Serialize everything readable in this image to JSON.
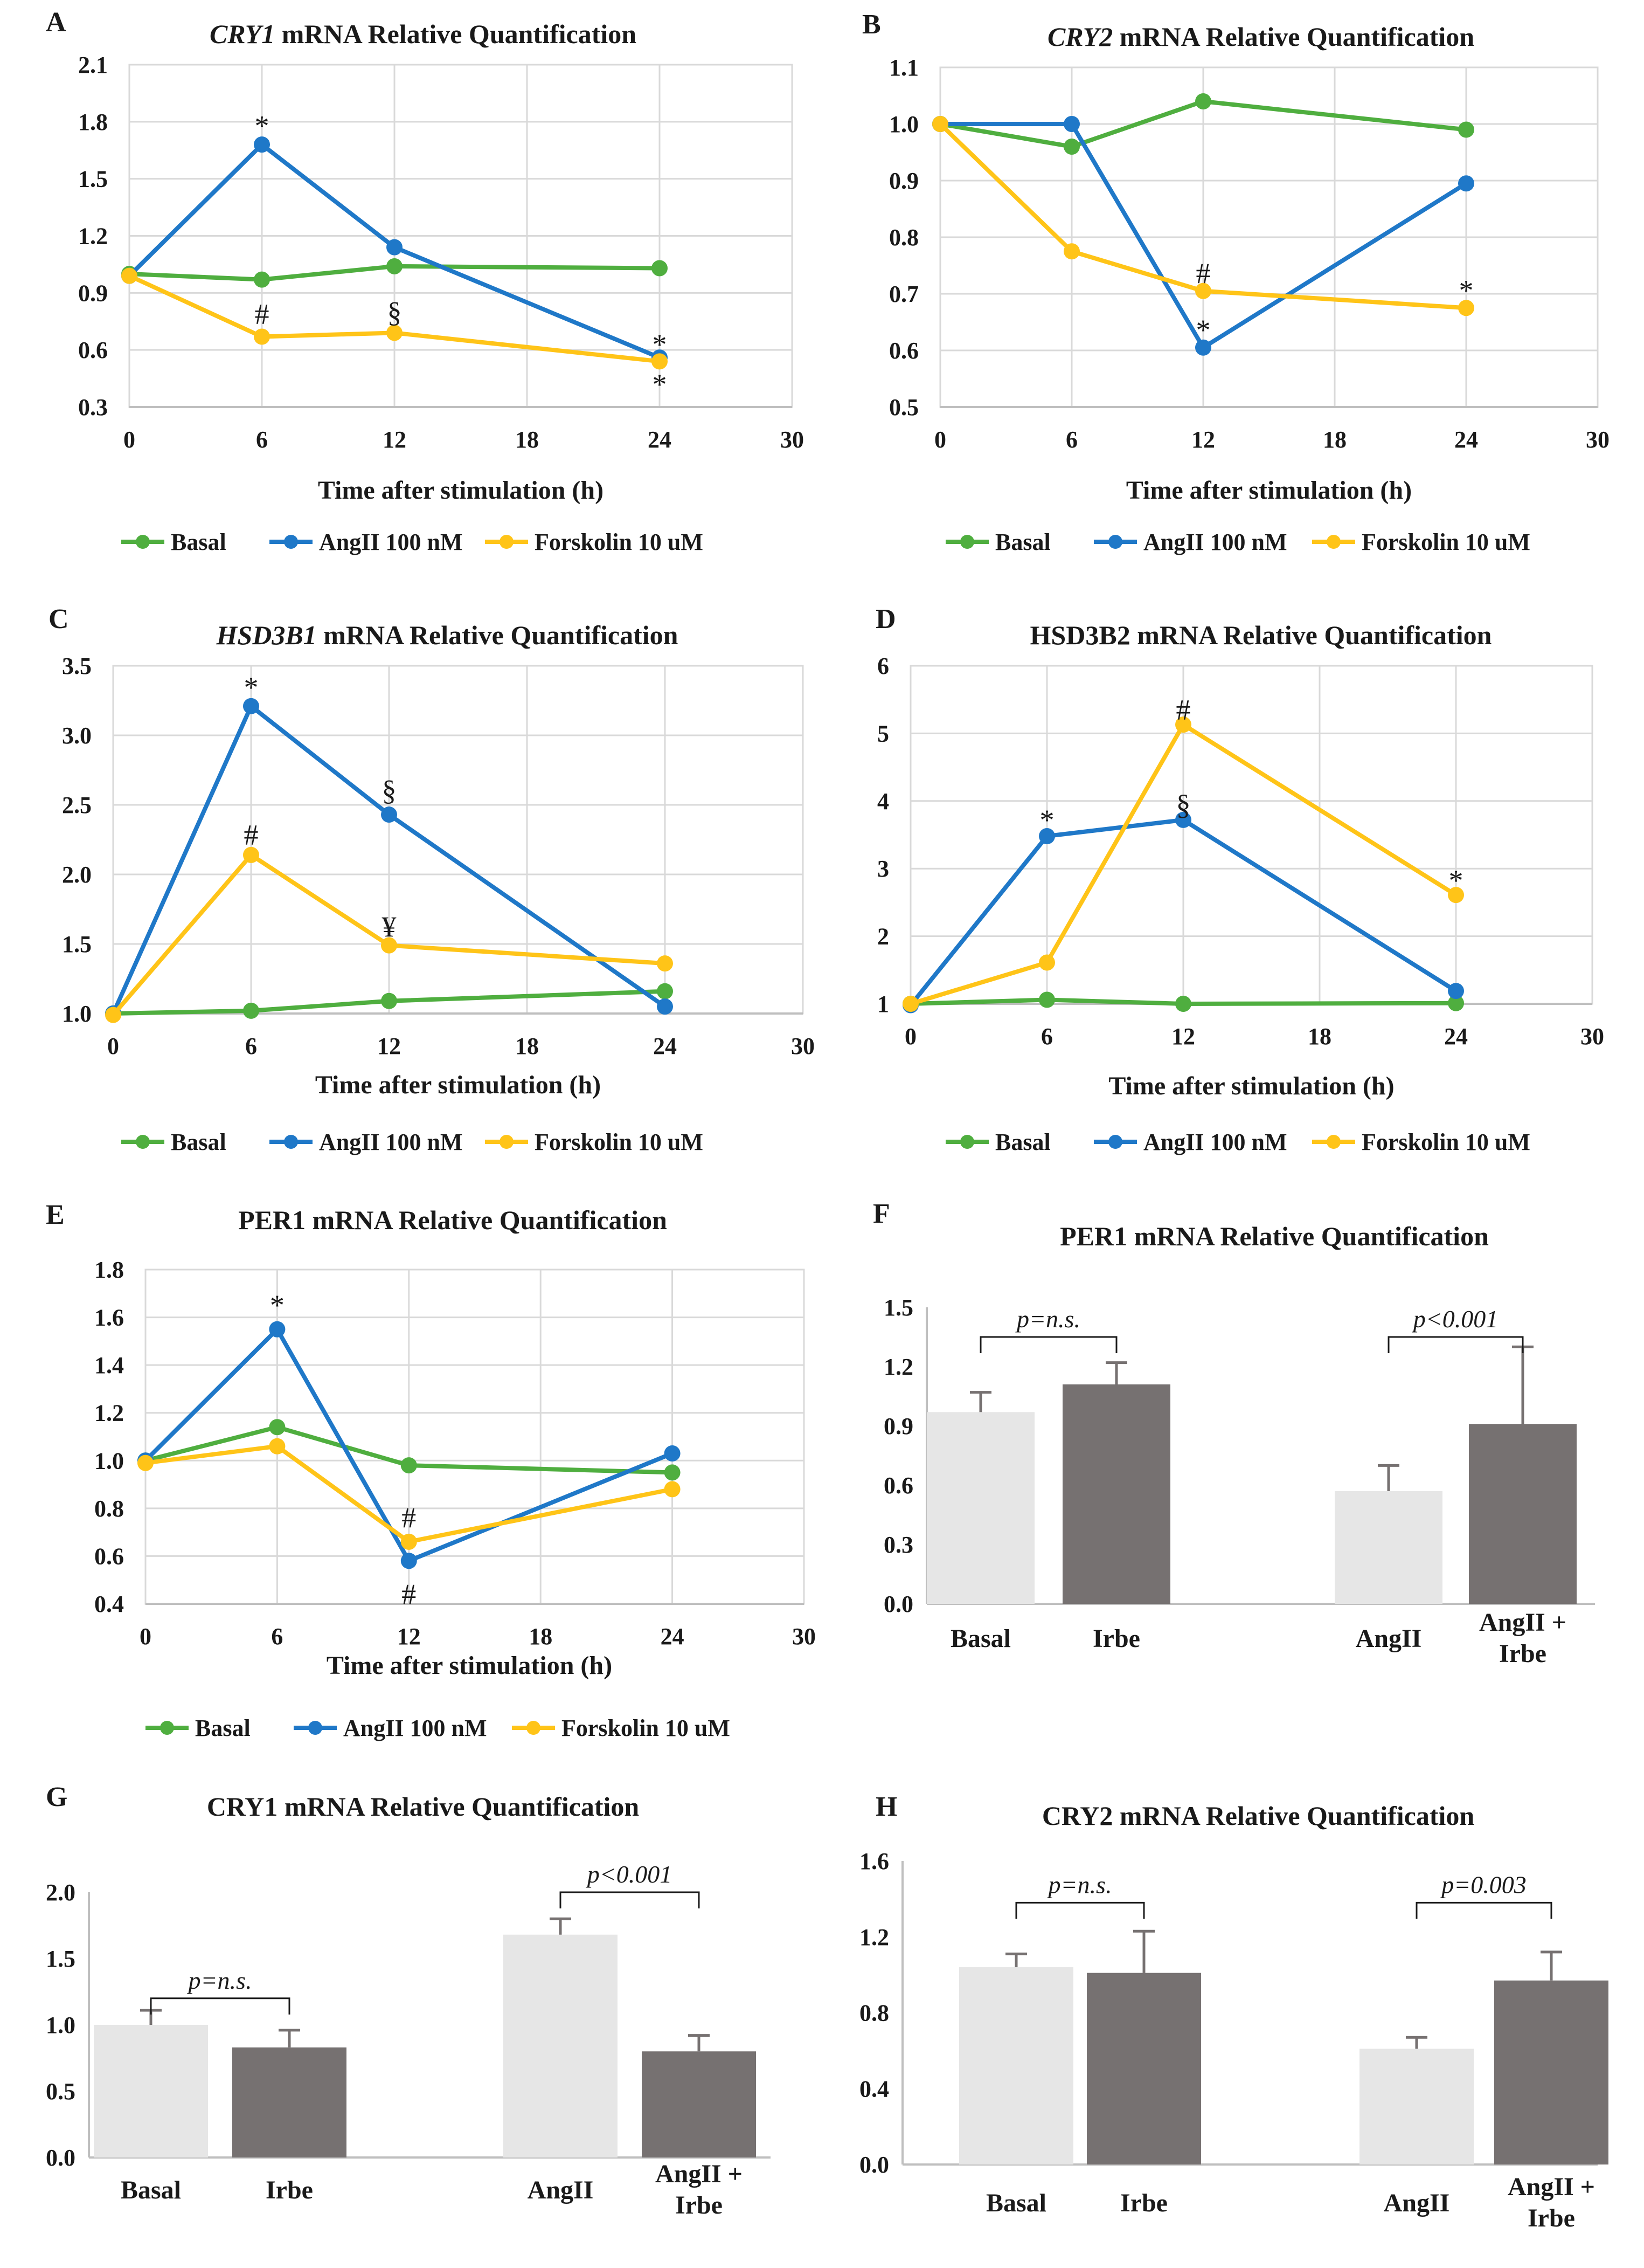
{
  "colors": {
    "basal": "#4fae3f",
    "angii": "#1f78c8",
    "forskolin": "#ffc418",
    "light_bar": "#e6e6e6",
    "dark_bar": "#767171",
    "grid": "#d9d9d9",
    "axis": "#bfbfbf"
  },
  "legend": [
    "Basal",
    "AngII 100 nM",
    "Forskolin 10 uM"
  ],
  "chart_data": [
    {
      "id": "A",
      "type": "line",
      "title_italic": "CRY1",
      "title_rest": " mRNA Relative Quantification",
      "xlabel": "Time  after stimulation  (h)",
      "x": [
        0,
        6,
        12,
        24
      ],
      "xlim": [
        0,
        30
      ],
      "xticks": [
        "0",
        "6",
        "12",
        "18",
        "24",
        "30"
      ],
      "ylim": [
        0.3,
        2.1
      ],
      "yticks": [
        "0.3",
        "0.6",
        "0.9",
        "1.2",
        "1.5",
        "1.8",
        "2.1"
      ],
      "series": [
        {
          "name": "Basal",
          "values": [
            1.0,
            0.97,
            1.04,
            1.03
          ]
        },
        {
          "name": "AngII 100 nM",
          "values": [
            0.99,
            1.68,
            1.14,
            0.56
          ]
        },
        {
          "name": "Forskolin 10 uM",
          "values": [
            0.99,
            0.67,
            0.69,
            0.54
          ]
        }
      ],
      "annotations": [
        {
          "text": "*",
          "x": 6,
          "y": 1.79
        },
        {
          "text": "#",
          "x": 6,
          "y": 0.8
        },
        {
          "text": "§",
          "x": 12,
          "y": 0.81
        },
        {
          "text": "*",
          "x": 24,
          "y": 0.64
        },
        {
          "text": "*",
          "x": 24,
          "y": 0.43
        }
      ]
    },
    {
      "id": "B",
      "type": "line",
      "title_italic": "CRY2",
      "title_rest": " mRNA Relative Quantification",
      "xlabel": "Time  after stimulation  (h)",
      "x": [
        0,
        6,
        12,
        24
      ],
      "xlim": [
        0,
        30
      ],
      "xticks": [
        "0",
        "6",
        "12",
        "18",
        "24",
        "30"
      ],
      "ylim": [
        0.5,
        1.1
      ],
      "yticks": [
        "0.5",
        "0.6",
        "0.7",
        "0.8",
        "0.9",
        "1.0",
        "1.1"
      ],
      "series": [
        {
          "name": "Basal",
          "values": [
            1.0,
            0.96,
            1.04,
            0.99
          ]
        },
        {
          "name": "AngII 100 nM",
          "values": [
            1.0,
            1.0,
            0.605,
            0.895
          ]
        },
        {
          "name": "Forskolin 10 uM",
          "values": [
            1.0,
            0.775,
            0.705,
            0.675
          ]
        }
      ],
      "annotations": [
        {
          "text": "#",
          "x": 12,
          "y": 0.74
        },
        {
          "text": "*",
          "x": 12,
          "y": 0.64
        },
        {
          "text": "*",
          "x": 24,
          "y": 0.71
        }
      ]
    },
    {
      "id": "C",
      "type": "line",
      "title_italic": "HSD3B1",
      "title_rest": " mRNA Relative Quantification",
      "xlabel": "Time  after stimulation  (h)",
      "x": [
        0,
        6,
        12,
        24
      ],
      "xlim": [
        0,
        30
      ],
      "xticks": [
        "0",
        "6",
        "12",
        "18",
        "24",
        "30"
      ],
      "ylim": [
        1.0,
        3.5
      ],
      "yticks": [
        "1.0",
        "1.5",
        "2.0",
        "2.5",
        "3.0",
        "3.5"
      ],
      "series": [
        {
          "name": "Basal",
          "values": [
            1.0,
            1.02,
            1.09,
            1.16
          ]
        },
        {
          "name": "AngII 100 nM",
          "values": [
            1.0,
            3.21,
            2.43,
            1.05
          ]
        },
        {
          "name": "Forskolin 10 uM",
          "values": [
            0.99,
            2.14,
            1.49,
            1.36
          ]
        }
      ],
      "annotations": [
        {
          "text": "*",
          "x": 6,
          "y": 3.36
        },
        {
          "text": "§",
          "x": 12,
          "y": 2.62
        },
        {
          "text": "#",
          "x": 6,
          "y": 2.3
        },
        {
          "text": "¥",
          "x": 12,
          "y": 1.64
        }
      ]
    },
    {
      "id": "D",
      "type": "line",
      "title_italic": "",
      "title_rest": "HSD3B2 mRNA Relative Quantification",
      "xlabel": "Time  after stimulation  (h)",
      "x": [
        0,
        6,
        12,
        24
      ],
      "xlim": [
        0,
        30
      ],
      "xticks": [
        "0",
        "6",
        "12",
        "18",
        "24",
        "30"
      ],
      "ylim": [
        1,
        6
      ],
      "yticks": [
        "1",
        "2",
        "3",
        "4",
        "5",
        "6"
      ],
      "series": [
        {
          "name": "Basal",
          "values": [
            1.0,
            1.06,
            1.0,
            1.01
          ]
        },
        {
          "name": "AngII 100 nM",
          "values": [
            0.98,
            3.48,
            3.72,
            1.19
          ]
        },
        {
          "name": "Forskolin 10 uM",
          "values": [
            1.0,
            1.61,
            5.13,
            2.61
          ]
        }
      ],
      "annotations": [
        {
          "text": "*",
          "x": 6,
          "y": 3.75
        },
        {
          "text": "§",
          "x": 12,
          "y": 3.98
        },
        {
          "text": "#",
          "x": 12,
          "y": 5.38
        },
        {
          "text": "*",
          "x": 24,
          "y": 2.86
        }
      ]
    },
    {
      "id": "E",
      "type": "line",
      "title_italic": "",
      "title_rest": "PER1 mRNA Relative Quantification",
      "xlabel": "Time  after stimulation  (h)",
      "x": [
        0,
        6,
        12,
        24
      ],
      "xlim": [
        0,
        30
      ],
      "xticks": [
        "0",
        "6",
        "12",
        "18",
        "24",
        "30"
      ],
      "ylim": [
        0.4,
        1.8
      ],
      "yticks": [
        "0.4",
        "0.6",
        "0.8",
        "1.0",
        "1.2",
        "1.4",
        "1.6",
        "1.8"
      ],
      "series": [
        {
          "name": "Basal",
          "values": [
            1.0,
            1.14,
            0.98,
            0.95
          ]
        },
        {
          "name": "AngII 100 nM",
          "values": [
            1.0,
            1.55,
            0.58,
            1.03
          ]
        },
        {
          "name": "Forskolin 10 uM",
          "values": [
            0.99,
            1.06,
            0.66,
            0.88
          ]
        }
      ],
      "annotations": [
        {
          "text": "*",
          "x": 6,
          "y": 1.66
        },
        {
          "text": "#",
          "x": 12,
          "y": 0.77
        },
        {
          "text": "#",
          "x": 12,
          "y": 0.45
        }
      ]
    },
    {
      "id": "F",
      "type": "bar",
      "title": "PER1 mRNA  Relative Quantification",
      "categories": [
        "Basal",
        "Irbe",
        "AngII",
        "AngII + Irbe"
      ],
      "values": [
        0.97,
        1.11,
        0.57,
        0.91
      ],
      "errors": [
        0.1,
        0.11,
        0.13,
        0.39
      ],
      "ylim": [
        0.0,
        1.5
      ],
      "yticks": [
        "0.0",
        "0.3",
        "0.6",
        "0.9",
        "1.2",
        "1.5"
      ],
      "comparisons": [
        {
          "pair": [
            0,
            1
          ],
          "text": "p=n.s.",
          "y": 1.35
        },
        {
          "pair": [
            2,
            3
          ],
          "text": "p<0.001",
          "y": 1.35
        }
      ]
    },
    {
      "id": "G",
      "type": "bar",
      "title": "CRY1 mRNA Relative Quantification",
      "categories": [
        "Basal",
        "Irbe",
        "AngII",
        "AngII + Irbe"
      ],
      "values": [
        1.0,
        0.83,
        1.68,
        0.8
      ],
      "errors": [
        0.11,
        0.13,
        0.12,
        0.12
      ],
      "ylim": [
        0.0,
        2.0
      ],
      "yticks": [
        "0.0",
        "0.5",
        "1.0",
        "1.5",
        "2.0"
      ],
      "comparisons": [
        {
          "pair": [
            0,
            1
          ],
          "text": "p=n.s.",
          "y": 1.2
        },
        {
          "pair": [
            2,
            3
          ],
          "text": "p<0.001",
          "y": 2.0
        }
      ]
    },
    {
      "id": "H",
      "type": "bar",
      "title": "CRY2 mRNA Relative Quantification",
      "categories": [
        "Basal",
        "Irbe",
        "AngII",
        "AngII + Irbe"
      ],
      "values": [
        1.04,
        1.01,
        0.61,
        0.97
      ],
      "errors": [
        0.07,
        0.22,
        0.06,
        0.15
      ],
      "ylim": [
        0.0,
        1.6
      ],
      "yticks": [
        "0.0",
        "0.4",
        "0.8",
        "1.2",
        "1.6"
      ],
      "comparisons": [
        {
          "pair": [
            0,
            1
          ],
          "text": "p=n.s.",
          "y": 1.38
        },
        {
          "pair": [
            2,
            3
          ],
          "text": "p=0.003",
          "y": 1.38
        }
      ]
    }
  ]
}
